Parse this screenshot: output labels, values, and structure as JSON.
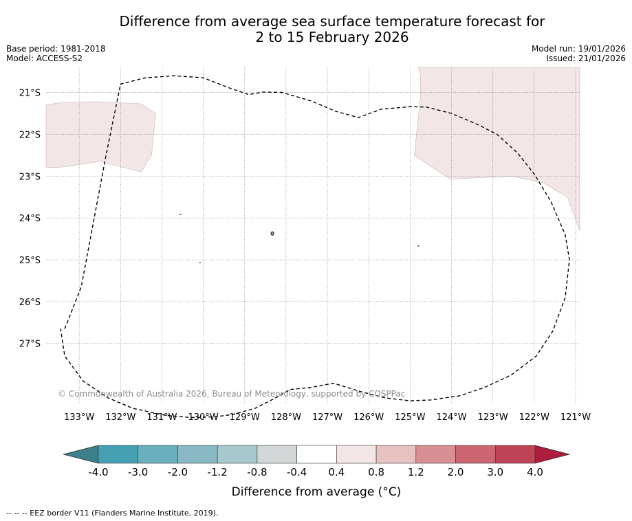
{
  "title_line1": "Difference from average sea surface temperature forecast for",
  "title_line2": "2 to 15 February 2026",
  "meta": {
    "base_period": "Base period: 1981-2018",
    "model": "Model: ACCESS-S2",
    "model_run": "Model run: 19/01/2026",
    "issued": "Issued: 21/01/2026"
  },
  "copyright": "© Commonwealth of Australia 2026, Bureau of Meteorology, supported by COSPPac",
  "footnote": "--  --  -- EEZ border V11 (Flanders Marine Institute, 2019).",
  "map": {
    "lon_ticks": [
      {
        "value": -133,
        "label": "133°W"
      },
      {
        "value": -132,
        "label": "132°W"
      },
      {
        "value": -131,
        "label": "131°W"
      },
      {
        "value": -130,
        "label": "130°W"
      },
      {
        "value": -129,
        "label": "129°W"
      },
      {
        "value": -128,
        "label": "128°W"
      },
      {
        "value": -127,
        "label": "127°W"
      },
      {
        "value": -126,
        "label": "126°W"
      },
      {
        "value": -125,
        "label": "125°W"
      },
      {
        "value": -124,
        "label": "124°W"
      },
      {
        "value": -123,
        "label": "123°W"
      },
      {
        "value": -122,
        "label": "122°W"
      },
      {
        "value": -121,
        "label": "121°W"
      }
    ],
    "lat_ticks": [
      {
        "value": -21,
        "label": "21°S"
      },
      {
        "value": -22,
        "label": "22°S"
      },
      {
        "value": -23,
        "label": "23°S"
      },
      {
        "value": -24,
        "label": "24°S"
      },
      {
        "value": -25,
        "label": "25°S"
      },
      {
        "value": -26,
        "label": "26°S"
      },
      {
        "value": -27,
        "label": "27°S"
      }
    ],
    "extent": {
      "lon_min": -133.8,
      "lon_max": -120.9,
      "lat_min": -28.45,
      "lat_max": -20.4
    },
    "anomaly_fill_color": "#f3e6e6",
    "anomaly_value_range": "0.4 to 0.8",
    "anomaly_regions": [
      {
        "name": "west",
        "coords": [
          [
            -133.8,
            -21.3
          ],
          [
            -133.5,
            -21.25
          ],
          [
            -132.6,
            -21.22
          ],
          [
            -131.5,
            -21.27
          ],
          [
            -131.15,
            -21.5
          ],
          [
            -131.25,
            -22.5
          ],
          [
            -131.5,
            -22.9
          ],
          [
            -132.5,
            -22.65
          ],
          [
            -133.4,
            -22.78
          ],
          [
            -133.8,
            -22.8
          ]
        ]
      },
      {
        "name": "east",
        "coords": [
          [
            -124.8,
            -20.4
          ],
          [
            -120.9,
            -20.4
          ],
          [
            -120.9,
            -24.3
          ],
          [
            -121.2,
            -23.5
          ],
          [
            -121.8,
            -23.15
          ],
          [
            -122.55,
            -23.0
          ],
          [
            -123.6,
            -23.05
          ],
          [
            -124.03,
            -23.07
          ],
          [
            -124.6,
            -22.7
          ],
          [
            -124.9,
            -22.5
          ],
          [
            -124.75,
            -21.1
          ],
          [
            -124.75,
            -20.6
          ]
        ]
      }
    ],
    "eez_border": [
      [
        -133.35,
        -26.65
      ],
      [
        -132.95,
        -25.65
      ],
      [
        -132.35,
        -22.5
      ],
      [
        -132.0,
        -20.8
      ],
      [
        -131.4,
        -20.65
      ],
      [
        -130.7,
        -20.6
      ],
      [
        -130.0,
        -20.65
      ],
      [
        -129.35,
        -20.9
      ],
      [
        -128.9,
        -21.05
      ],
      [
        -128.55,
        -20.99
      ],
      [
        -128.1,
        -21.0
      ],
      [
        -127.4,
        -21.2
      ],
      [
        -126.8,
        -21.45
      ],
      [
        -126.25,
        -21.6
      ],
      [
        -125.7,
        -21.4
      ],
      [
        -125.0,
        -21.34
      ],
      [
        -124.6,
        -21.35
      ],
      [
        -124.0,
        -21.5
      ],
      [
        -123.4,
        -21.75
      ],
      [
        -122.9,
        -22.0
      ],
      [
        -122.4,
        -22.45
      ],
      [
        -122.0,
        -22.95
      ],
      [
        -121.6,
        -23.6
      ],
      [
        -121.25,
        -24.4
      ],
      [
        -121.15,
        -25.0
      ],
      [
        -121.25,
        -25.9
      ],
      [
        -121.55,
        -26.7
      ],
      [
        -121.95,
        -27.3
      ],
      [
        -122.55,
        -27.75
      ],
      [
        -123.2,
        -28.05
      ],
      [
        -123.8,
        -28.25
      ],
      [
        -124.5,
        -28.35
      ],
      [
        -125.0,
        -28.37
      ],
      [
        -125.6,
        -28.3
      ],
      [
        -126.2,
        -28.15
      ],
      [
        -126.85,
        -27.95
      ],
      [
        -127.4,
        -28.05
      ],
      [
        -127.9,
        -28.1
      ],
      [
        -128.25,
        -28.3
      ],
      [
        -128.75,
        -28.55
      ],
      [
        -129.3,
        -28.7
      ],
      [
        -129.7,
        -28.75
      ],
      [
        -130.3,
        -28.77
      ],
      [
        -130.9,
        -28.72
      ],
      [
        -131.7,
        -28.55
      ],
      [
        -132.3,
        -28.3
      ],
      [
        -132.9,
        -27.9
      ],
      [
        -133.35,
        -27.3
      ],
      [
        -133.45,
        -26.65
      ]
    ],
    "islands": [
      {
        "name": "pitcairn-dot",
        "lon": -130.55,
        "lat": -23.92
      },
      {
        "name": "henderson-island",
        "lon": -128.33,
        "lat": -24.37
      },
      {
        "name": "ducie-island",
        "lon": -124.8,
        "lat": -24.67
      },
      {
        "name": "oeno-island",
        "lon": -130.08,
        "lat": -25.07
      }
    ]
  },
  "colorbar": {
    "label": "Difference from average (°C)",
    "label_main": "Difference from average (",
    "label_unit": "°C)",
    "ticks": [
      "-4.0",
      "-3.0",
      "-2.0",
      "-1.2",
      "-0.8",
      "-0.4",
      "0.4",
      "0.8",
      "1.2",
      "2.0",
      "3.0",
      "4.0"
    ],
    "under_color": "#3e7f8c",
    "over_color": "#ae1c3e",
    "colors": [
      "#44a0b2",
      "#6aafbd",
      "#88b8c3",
      "#a7c8cd",
      "#d3d7d8",
      "#ffffff",
      "#f3e6e6",
      "#e7c2c1",
      "#d78f94",
      "#cc6671",
      "#bf4356"
    ]
  }
}
